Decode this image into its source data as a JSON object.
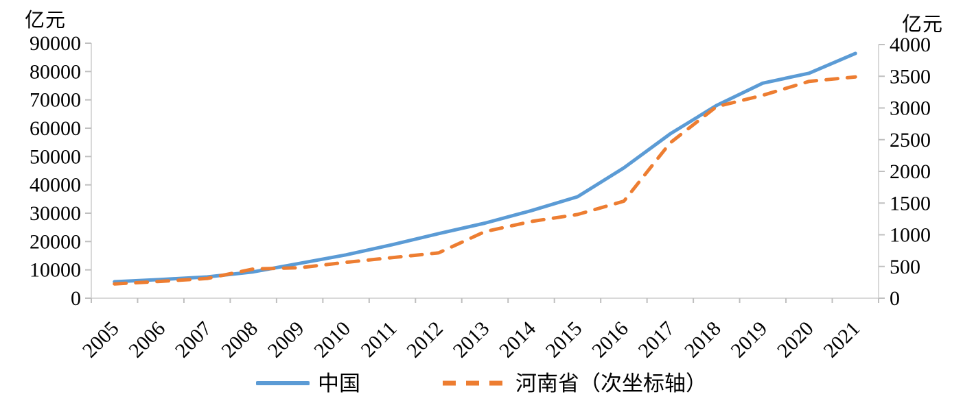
{
  "chart_data": {
    "type": "line",
    "x": [
      "2005",
      "2006",
      "2007",
      "2008",
      "2009",
      "2010",
      "2011",
      "2012",
      "2013",
      "2014",
      "2015",
      "2016",
      "2017",
      "2018",
      "2019",
      "2020",
      "2021"
    ],
    "series": [
      {
        "name": "中国",
        "axis": "left",
        "color": "#5B9BD5",
        "style": "solid",
        "values": [
          5800,
          6600,
          7500,
          9300,
          12300,
          15300,
          18900,
          22800,
          26500,
          30900,
          35800,
          46000,
          58000,
          68000,
          75900,
          79400,
          86400
        ]
      },
      {
        "name": "河南省（次坐标轴）",
        "axis": "right",
        "color": "#ED7D31",
        "style": "dashed",
        "values": [
          225,
          265,
          310,
          460,
          480,
          565,
          640,
          715,
          1050,
          1210,
          1320,
          1530,
          2450,
          3020,
          3200,
          3420,
          3490
        ]
      }
    ],
    "left_axis": {
      "title": "亿元",
      "min": 0,
      "max": 90000,
      "step": 10000,
      "tick_labels": [
        "90000",
        "80000",
        "70000",
        "60000",
        "50000",
        "40000",
        "30000",
        "20000",
        "10000",
        "0"
      ]
    },
    "right_axis": {
      "title": "亿元",
      "min": 0,
      "max": 4000,
      "step": 500,
      "tick_labels": [
        "4000",
        "3500",
        "3000",
        "2500",
        "2000",
        "1500",
        "1000",
        "500",
        "0"
      ]
    },
    "legend_position": "bottom",
    "grid": false
  },
  "colors": {
    "axis_line": "#D9D9D9",
    "tick": "#BFBFBF",
    "text": "#000000",
    "background": "#FFFFFF"
  }
}
